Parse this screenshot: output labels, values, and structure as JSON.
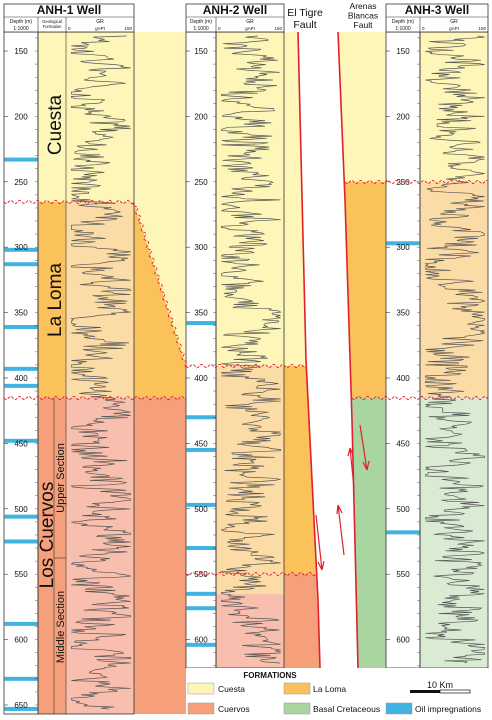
{
  "colors": {
    "cuesta": "#fdf6b8",
    "la_loma": "#fbc15a",
    "la_loma_light": "#fcdca6",
    "cuervos": "#f5a07a",
    "cuervos_light": "#f9bfae",
    "basal_cretaceous": "#a8d5a0",
    "basal_light": "#d9ecd3",
    "oil": "#41b3e2",
    "fault": "#e0202c",
    "log": "#555555"
  },
  "wells": [
    {
      "name": "ANH-1 Well",
      "depth_header": "Depth (m)",
      "scale": "1:1000",
      "formation_header": "Geological Formation",
      "log_header": "GR",
      "log_min": "0",
      "log_unit": "gAPI",
      "log_max": "150",
      "depth_ticks": [
        "150",
        "200",
        "250",
        "300",
        "350",
        "400",
        "450",
        "500",
        "550",
        "600",
        "650"
      ],
      "oil_impregnations_m": [
        233,
        302,
        313,
        361,
        393,
        406,
        448,
        506,
        525,
        588,
        630,
        653
      ],
      "formations": [
        {
          "label": "Cuesta",
          "top_m": 120,
          "base_m": 268
        },
        {
          "label": "La Loma",
          "top_m": 268,
          "base_m": 415
        },
        {
          "label": "Los Cuervos",
          "top_m": 415,
          "base_m": 660
        }
      ],
      "sub_sections": [
        {
          "label": "Upper Section",
          "top_m": 415,
          "base_m": 562
        },
        {
          "label": "Middle Section",
          "top_m": 562,
          "base_m": 660
        }
      ]
    },
    {
      "name": "ANH-2 Well",
      "depth_header": "Depth (m)",
      "scale": "1:1000",
      "log_header": "GR",
      "log_min": "0",
      "log_unit": "gAPI",
      "log_max": "150",
      "depth_ticks": [
        "150",
        "200",
        "250",
        "300",
        "350",
        "400",
        "450",
        "500",
        "550",
        "600"
      ],
      "oil_impregnations_m": [
        358,
        430,
        455,
        497,
        530,
        565,
        576,
        604
      ]
    },
    {
      "name": "ANH-3 Well",
      "depth_header": "Depth (m)",
      "scale": "1:1000",
      "log_header": "GR",
      "log_min": "0",
      "log_unit": "gAPI",
      "log_max": "150",
      "depth_ticks": [
        "150",
        "200",
        "250",
        "300",
        "350",
        "400",
        "450",
        "500",
        "550",
        "600"
      ],
      "oil_impregnations_m": [
        297,
        518
      ]
    }
  ],
  "faults": [
    {
      "name_lines": [
        "El Tigre",
        "Fault"
      ]
    },
    {
      "name_lines": [
        "Arenas",
        "Blancas",
        "Fault"
      ]
    }
  ],
  "legend": {
    "title": "FORMATIONS",
    "items": [
      {
        "label": "Cuesta",
        "color_key": "cuesta"
      },
      {
        "label": "La Loma",
        "color_key": "la_loma"
      },
      {
        "label": "Cuervos",
        "color_key": "cuervos"
      },
      {
        "label": "Basal Cretaceous",
        "color_key": "basal_cretaceous"
      },
      {
        "label": "Oil impregnations",
        "color_key": "oil"
      }
    ],
    "scale_bar_label": "10 Km"
  }
}
